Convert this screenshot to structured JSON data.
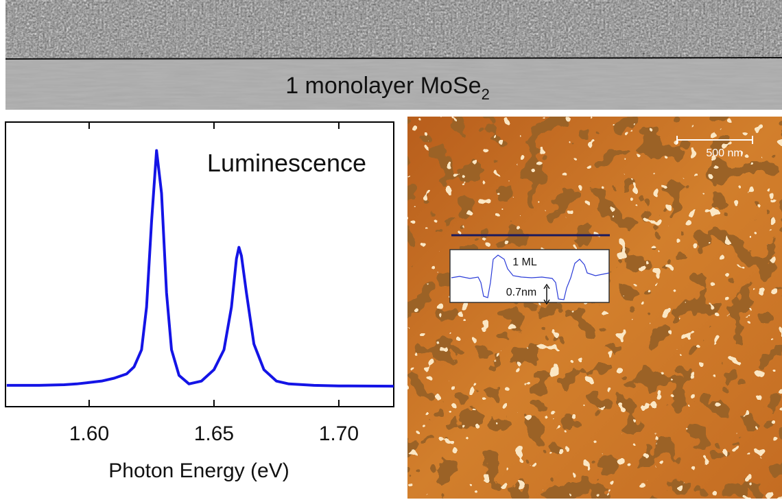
{
  "banner": {
    "text": "1 monolayer MoSe",
    "subscript": "2"
  },
  "chart_data": {
    "type": "line",
    "annotation": "Luminescence",
    "xlabel": "Photon Energy (eV)",
    "x": [
      1.567,
      1.58,
      1.59,
      1.595,
      1.6,
      1.605,
      1.61,
      1.615,
      1.618,
      1.621,
      1.623,
      1.625,
      1.627,
      1.629,
      1.631,
      1.633,
      1.636,
      1.64,
      1.645,
      1.65,
      1.654,
      1.657,
      1.659,
      1.66,
      1.661,
      1.663,
      1.666,
      1.67,
      1.675,
      1.68,
      1.69,
      1.7,
      1.722
    ],
    "series": [
      {
        "color": "#1414e6",
        "values": [
          0.075,
          0.075,
          0.077,
          0.08,
          0.085,
          0.09,
          0.1,
          0.115,
          0.14,
          0.2,
          0.35,
          0.65,
          0.9,
          0.75,
          0.4,
          0.2,
          0.11,
          0.08,
          0.09,
          0.13,
          0.2,
          0.35,
          0.52,
          0.56,
          0.53,
          0.4,
          0.22,
          0.13,
          0.09,
          0.08,
          0.075,
          0.073,
          0.072
        ]
      }
    ],
    "xlim": [
      1.5665,
      1.722
    ],
    "ylim": [
      0,
      1
    ],
    "xticks": [
      {
        "value": 1.6,
        "label": "1.60"
      },
      {
        "value": 1.65,
        "label": "1.65"
      },
      {
        "value": 1.7,
        "label": "1.70"
      }
    ]
  },
  "afm": {
    "scale_bar": "500 nm",
    "profile_labels": [
      "1 ML",
      "0.7nm"
    ]
  }
}
